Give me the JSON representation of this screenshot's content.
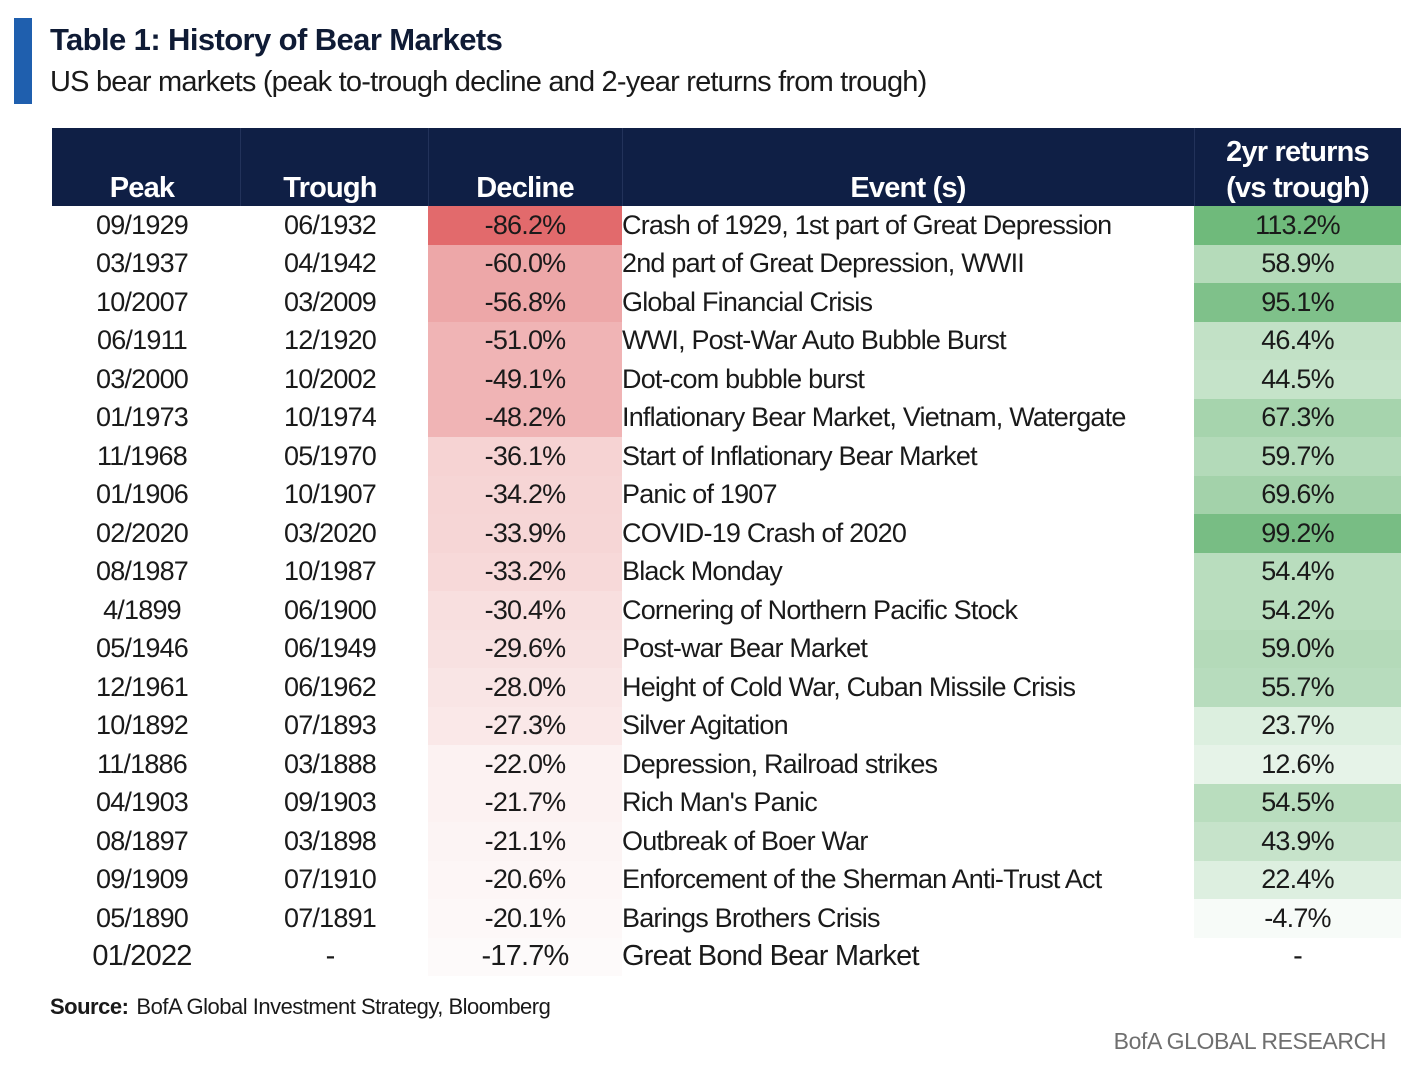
{
  "header": {
    "title": "Table 1: History of Bear Markets",
    "subtitle": "US bear markets (peak to-trough decline and 2-year returns from trough)"
  },
  "columns": {
    "peak": "Peak",
    "trough": "Trough",
    "decline": "Decline",
    "event": "Event (s)",
    "returns_line1": "2yr returns",
    "returns_line2": "(vs trough)"
  },
  "rows": [
    {
      "peak": "09/1929",
      "trough": "06/1932",
      "decline": "-86.2%",
      "event": "Crash of 1929, 1st part of Great Depression",
      "returns": "113.2%",
      "decline_bg": "#e26a6c",
      "returns_bg": "#6fba7b"
    },
    {
      "peak": "03/1937",
      "trough": "04/1942",
      "decline": "-60.0%",
      "event": "2nd part of Great Depression, WWII",
      "returns": "58.9%",
      "decline_bg": "#eda7a8",
      "returns_bg": "#b5dbba"
    },
    {
      "peak": "10/2007",
      "trough": "03/2009",
      "decline": "-56.8%",
      "event": "Global Financial Crisis",
      "returns": "95.1%",
      "decline_bg": "#eda7a8",
      "returns_bg": "#7fc18a"
    },
    {
      "peak": "06/1911",
      "trough": "12/1920",
      "decline": "-51.0%",
      "event": "WWI, Post-War Auto Bubble Burst",
      "returns": "46.4%",
      "decline_bg": "#f0b4b5",
      "returns_bg": "#c2e1c6"
    },
    {
      "peak": "03/2000",
      "trough": "10/2002",
      "decline": "-49.1%",
      "event": "Dot-com bubble burst",
      "returns": "44.5%",
      "decline_bg": "#f0b4b5",
      "returns_bg": "#c5e3c9"
    },
    {
      "peak": "01/1973",
      "trough": "10/1974",
      "decline": "-48.2%",
      "event": "Inflationary  Bear Market, Vietnam, Watergate",
      "returns": "67.3%",
      "decline_bg": "#f0b4b5",
      "returns_bg": "#a6d4ad"
    },
    {
      "peak": "11/1968",
      "trough": "05/1970",
      "decline": "-36.1%",
      "event": "Start of Inflationary  Bear Market",
      "returns": "59.7%",
      "decline_bg": "#f6d3d3",
      "returns_bg": "#b3dab9"
    },
    {
      "peak": "01/1906",
      "trough": "10/1907",
      "decline": "-34.2%",
      "event": "Panic of 1907",
      "returns": "69.6%",
      "decline_bg": "#f6d5d5",
      "returns_bg": "#a3d2aa"
    },
    {
      "peak": "02/2020",
      "trough": "03/2020",
      "decline": "-33.9%",
      "event": "COVID-19 Crash of 2020",
      "returns": "99.2%",
      "decline_bg": "#f6d6d6",
      "returns_bg": "#78bd84"
    },
    {
      "peak": "08/1987",
      "trough": "10/1987",
      "decline": "-33.2%",
      "event": "Black Monday",
      "returns": "54.4%",
      "decline_bg": "#f7d9d9",
      "returns_bg": "#b9ddbe"
    },
    {
      "peak": "4/1899",
      "trough": "06/1900",
      "decline": "-30.4%",
      "event": "Cornering of Northern Pacific Stock",
      "returns": "54.2%",
      "decline_bg": "#f8dfdf",
      "returns_bg": "#b9ddbe"
    },
    {
      "peak": "05/1946",
      "trough": "06/1949",
      "decline": "-29.6%",
      "event": "Post-war Bear Market",
      "returns": "59.0%",
      "decline_bg": "#f8e1e1",
      "returns_bg": "#b4dab9"
    },
    {
      "peak": "12/1961",
      "trough": "06/1962",
      "decline": "-28.0%",
      "event": "Height of Cold War,  Cuban Missile Crisis",
      "returns": "55.7%",
      "decline_bg": "#f9e5e5",
      "returns_bg": "#b7dcbd"
    },
    {
      "peak": "10/1892",
      "trough": "07/1893",
      "decline": "-27.3%",
      "event": "Silver Agitation",
      "returns": "23.7%",
      "decline_bg": "#fae8e8",
      "returns_bg": "#dcefdf"
    },
    {
      "peak": "11/1886",
      "trough": "03/1888",
      "decline": "-22.0%",
      "event": "Depression, Railroad strikes",
      "returns": "12.6%",
      "decline_bg": "#fcf2f2",
      "returns_bg": "#e6f3e8"
    },
    {
      "peak": "04/1903",
      "trough": "09/1903",
      "decline": "-21.7%",
      "event": "Rich Man's Panic",
      "returns": "54.5%",
      "decline_bg": "#fcf2f2",
      "returns_bg": "#b9ddbe"
    },
    {
      "peak": "08/1897",
      "trough": "03/1898",
      "decline": "-21.1%",
      "event": "Outbreak of Boer War",
      "returns": "43.9%",
      "decline_bg": "#fcf4f4",
      "returns_bg": "#c6e3ca"
    },
    {
      "peak": "09/1909",
      "trough": "07/1910",
      "decline": "-20.6%",
      "event": "Enforcement of the Sherman Anti-Trust Act",
      "returns": "22.4%",
      "decline_bg": "#fdf6f6",
      "returns_bg": "#ddefe0"
    },
    {
      "peak": "05/1890",
      "trough": "07/1891",
      "decline": "-20.1%",
      "event": "Barings Brothers Crisis",
      "returns": "-4.7%",
      "decline_bg": "#fdf8f8",
      "returns_bg": "#f7fbf8"
    },
    {
      "peak": "01/2022",
      "trough": "-",
      "decline": "-17.7%",
      "event": "Great Bond Bear Market",
      "returns": "-",
      "decline_bg": "#fdfafa",
      "returns_bg": "#ffffff"
    }
  ],
  "footer": {
    "source_label": "Source:",
    "source_text": "BofA Global Investment Strategy, Bloomberg",
    "brand": "BofA GLOBAL RESEARCH"
  }
}
